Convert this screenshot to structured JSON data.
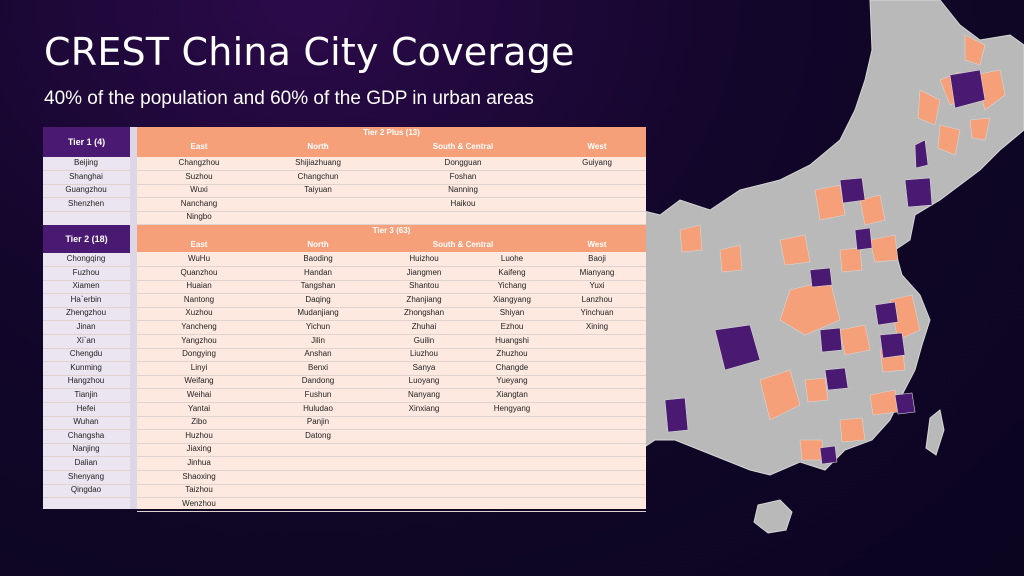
{
  "slide": {
    "title": "CREST China City Coverage",
    "subtitle": "40% of the population and 60% of the GDP in urban areas"
  },
  "colors": {
    "purple": "#4a1a72",
    "orange": "#f6a07a",
    "map_gray": "#b9b9b9"
  },
  "map": {
    "description_icon": "china-map-icon"
  },
  "tier1": {
    "header": "Tier 1 (4)",
    "cities": [
      "Beijing",
      "Shanghai",
      "Guangzhou",
      "Shenzhen"
    ]
  },
  "tier2plus": {
    "header": "Tier 2 Plus (13)",
    "columns": [
      "East",
      "North",
      "South & Central",
      "West"
    ],
    "east": [
      "Changzhou",
      "Suzhou",
      "Wuxi",
      "Nanchang",
      "Ningbo"
    ],
    "north": [
      "Shijiazhuang",
      "Changchun",
      "Taiyuan"
    ],
    "south_central": [
      "Dongguan",
      "Foshan",
      "Nanning",
      "Haikou"
    ],
    "west": [
      "Guiyang"
    ]
  },
  "tier2": {
    "header": "Tier 2 (18)",
    "cities": [
      "Chongqing",
      "Fuzhou",
      "Xiamen",
      "Ha`erbin",
      "Zhengzhou",
      "Jinan",
      "Xi`an",
      "Chengdu",
      "Kunming",
      "Hangzhou",
      "Tianjin",
      "Hefei",
      "Wuhan",
      "Changsha",
      "Nanjing",
      "Dalian",
      "Shenyang",
      "Qingdao"
    ]
  },
  "tier3": {
    "header": "Tier 3 (63)",
    "columns": [
      "East",
      "North",
      "South & Central",
      "West"
    ],
    "east": [
      "WuHu",
      "Quanzhou",
      "Huaian",
      "Nantong",
      "Xuzhou",
      "Yancheng",
      "Yangzhou",
      "Dongying",
      "Linyi",
      "Weifang",
      "Weihai",
      "Yantai",
      "Zibo",
      "Huzhou",
      "Jiaxing",
      "Jinhua",
      "Shaoxing",
      "Taizhou",
      "Wenzhou"
    ],
    "north": [
      "Baoding",
      "Handan",
      "Tangshan",
      "Daqing",
      "Mudanjiang",
      "Yichun",
      "Jilin",
      "Anshan",
      "Benxi",
      "Dandong",
      "Fushun",
      "Huludao",
      "Panjin",
      "Datong"
    ],
    "south_central_a": [
      "Huizhou",
      "Jiangmen",
      "Shantou",
      "Zhanjiang",
      "Zhongshan",
      "Zhuhai",
      "Guilin",
      "Liuzhou",
      "Sanya",
      "Luoyang",
      "Nanyang",
      "Xinxiang"
    ],
    "south_central_b": [
      "Luohe",
      "Kaifeng",
      "Yichang",
      "Xiangyang",
      "Shiyan",
      "Ezhou",
      "Huangshi",
      "Zhuzhou",
      "Changde",
      "Yueyang",
      "Xiangtan",
      "Hengyang"
    ],
    "west": [
      "Baoji",
      "Mianyang",
      "Yuxi",
      "Lanzhou",
      "Yinchuan",
      "Xining"
    ]
  }
}
